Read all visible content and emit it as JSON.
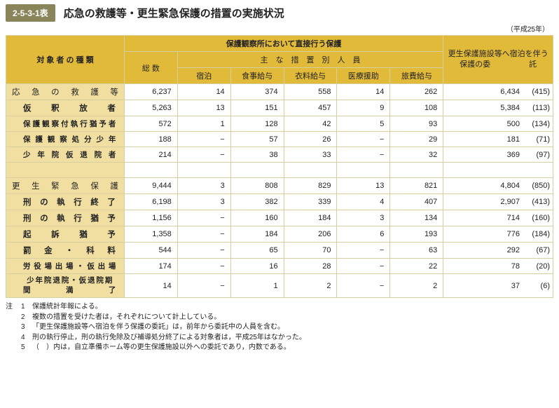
{
  "header": {
    "tag": "2-5-3-1表",
    "title": "応急の救護等・更生緊急保護の措置の実施状況",
    "year": "（平成25年）"
  },
  "columns": {
    "category": "対 象 者 の 種 類",
    "direct_group": "保護観察所において直接行う保護",
    "total": "総 数",
    "measures_group": "主　な　措　置　別　人　員",
    "m1": "宿泊",
    "m2": "食事給与",
    "m3": "衣料給与",
    "m4": "医療援助",
    "m5": "旅費給与",
    "commit": "更生保護施設等へ宿泊を伴う保護の委　　　　　託"
  },
  "rows": [
    {
      "k": "r1",
      "label": "応 急 の 救 護 等",
      "indent": false,
      "small": false,
      "section": true,
      "total": "6,237",
      "m1": "14",
      "m2": "374",
      "m3": "558",
      "m4": "14",
      "m5": "262",
      "c": "6,434",
      "p": "(415)"
    },
    {
      "k": "r2",
      "label": "仮 釈 放 者",
      "indent": true,
      "small": false,
      "total": "5,263",
      "m1": "13",
      "m2": "151",
      "m3": "457",
      "m4": "9",
      "m5": "108",
      "c": "5,384",
      "p": "(113)"
    },
    {
      "k": "r3",
      "label": "保護観察付執行猶予者",
      "indent": true,
      "small": true,
      "total": "572",
      "m1": "1",
      "m2": "128",
      "m3": "42",
      "m4": "5",
      "m5": "93",
      "c": "500",
      "p": "(134)"
    },
    {
      "k": "r4",
      "label": "保 護 観 察 処 分 少 年",
      "indent": true,
      "small": true,
      "total": "188",
      "m1": "−",
      "m2": "57",
      "m3": "26",
      "m4": "−",
      "m5": "29",
      "c": "181",
      "p": "(71)"
    },
    {
      "k": "r5",
      "label": "少 年 院 仮 退 院 者",
      "indent": true,
      "small": true,
      "total": "214",
      "m1": "−",
      "m2": "38",
      "m3": "33",
      "m4": "−",
      "m5": "32",
      "c": "369",
      "p": "(97)"
    },
    {
      "k": "sp1",
      "spacer": true
    },
    {
      "k": "r6",
      "label": "更 生 緊 急 保 護",
      "indent": false,
      "small": false,
      "section": true,
      "total": "9,444",
      "m1": "3",
      "m2": "808",
      "m3": "829",
      "m4": "13",
      "m5": "821",
      "c": "4,804",
      "p": "(850)"
    },
    {
      "k": "r7",
      "label": "刑 の 執 行 終 了",
      "indent": true,
      "small": false,
      "total": "6,198",
      "m1": "3",
      "m2": "382",
      "m3": "339",
      "m4": "4",
      "m5": "407",
      "c": "2,907",
      "p": "(413)"
    },
    {
      "k": "r8",
      "label": "刑 の 執 行 猶 予",
      "indent": true,
      "small": false,
      "total": "1,156",
      "m1": "−",
      "m2": "160",
      "m3": "184",
      "m4": "3",
      "m5": "134",
      "c": "714",
      "p": "(160)"
    },
    {
      "k": "r9",
      "label": "起 訴 猶 予",
      "indent": true,
      "small": false,
      "total": "1,358",
      "m1": "−",
      "m2": "184",
      "m3": "206",
      "m4": "6",
      "m5": "193",
      "c": "776",
      "p": "(184)"
    },
    {
      "k": "r10",
      "label": "罰 金 ・ 科 料",
      "indent": true,
      "small": false,
      "total": "544",
      "m1": "−",
      "m2": "65",
      "m3": "70",
      "m4": "−",
      "m5": "63",
      "c": "292",
      "p": "(67)"
    },
    {
      "k": "r11",
      "label": "労役場出場・仮出場",
      "indent": true,
      "small": true,
      "total": "174",
      "m1": "−",
      "m2": "16",
      "m3": "28",
      "m4": "−",
      "m5": "22",
      "c": "78",
      "p": "(20)"
    },
    {
      "k": "r12",
      "label": "少 年 院 退 院 ・\n仮 退 院 期 間 満 了",
      "indent": true,
      "small": true,
      "multi": true,
      "total": "14",
      "m1": "−",
      "m2": "1",
      "m3": "2",
      "m4": "−",
      "m5": "2",
      "c": "37",
      "p": "(6)"
    }
  ],
  "notes": {
    "label": "注",
    "items": [
      "保護統計年報による。",
      "複数の措置を受けた者は，それぞれについて計上している。",
      "「更生保護施設等へ宿泊を伴う保護の委託」は，前年から委託中の人員を含む。",
      "刑の執行停止，刑の執行免除及び補導処分終了による対象者は，平成25年はなかった。",
      "（　）内は，自立準備ホーム等の更生保護施設以外への委託であり，内数である。"
    ]
  },
  "styling": {
    "header_bg": "#e2ba3a",
    "rowhead_bg": "#f1dfa1",
    "border_color": "#d6cfa2",
    "tag_bg": "#8a845a"
  }
}
